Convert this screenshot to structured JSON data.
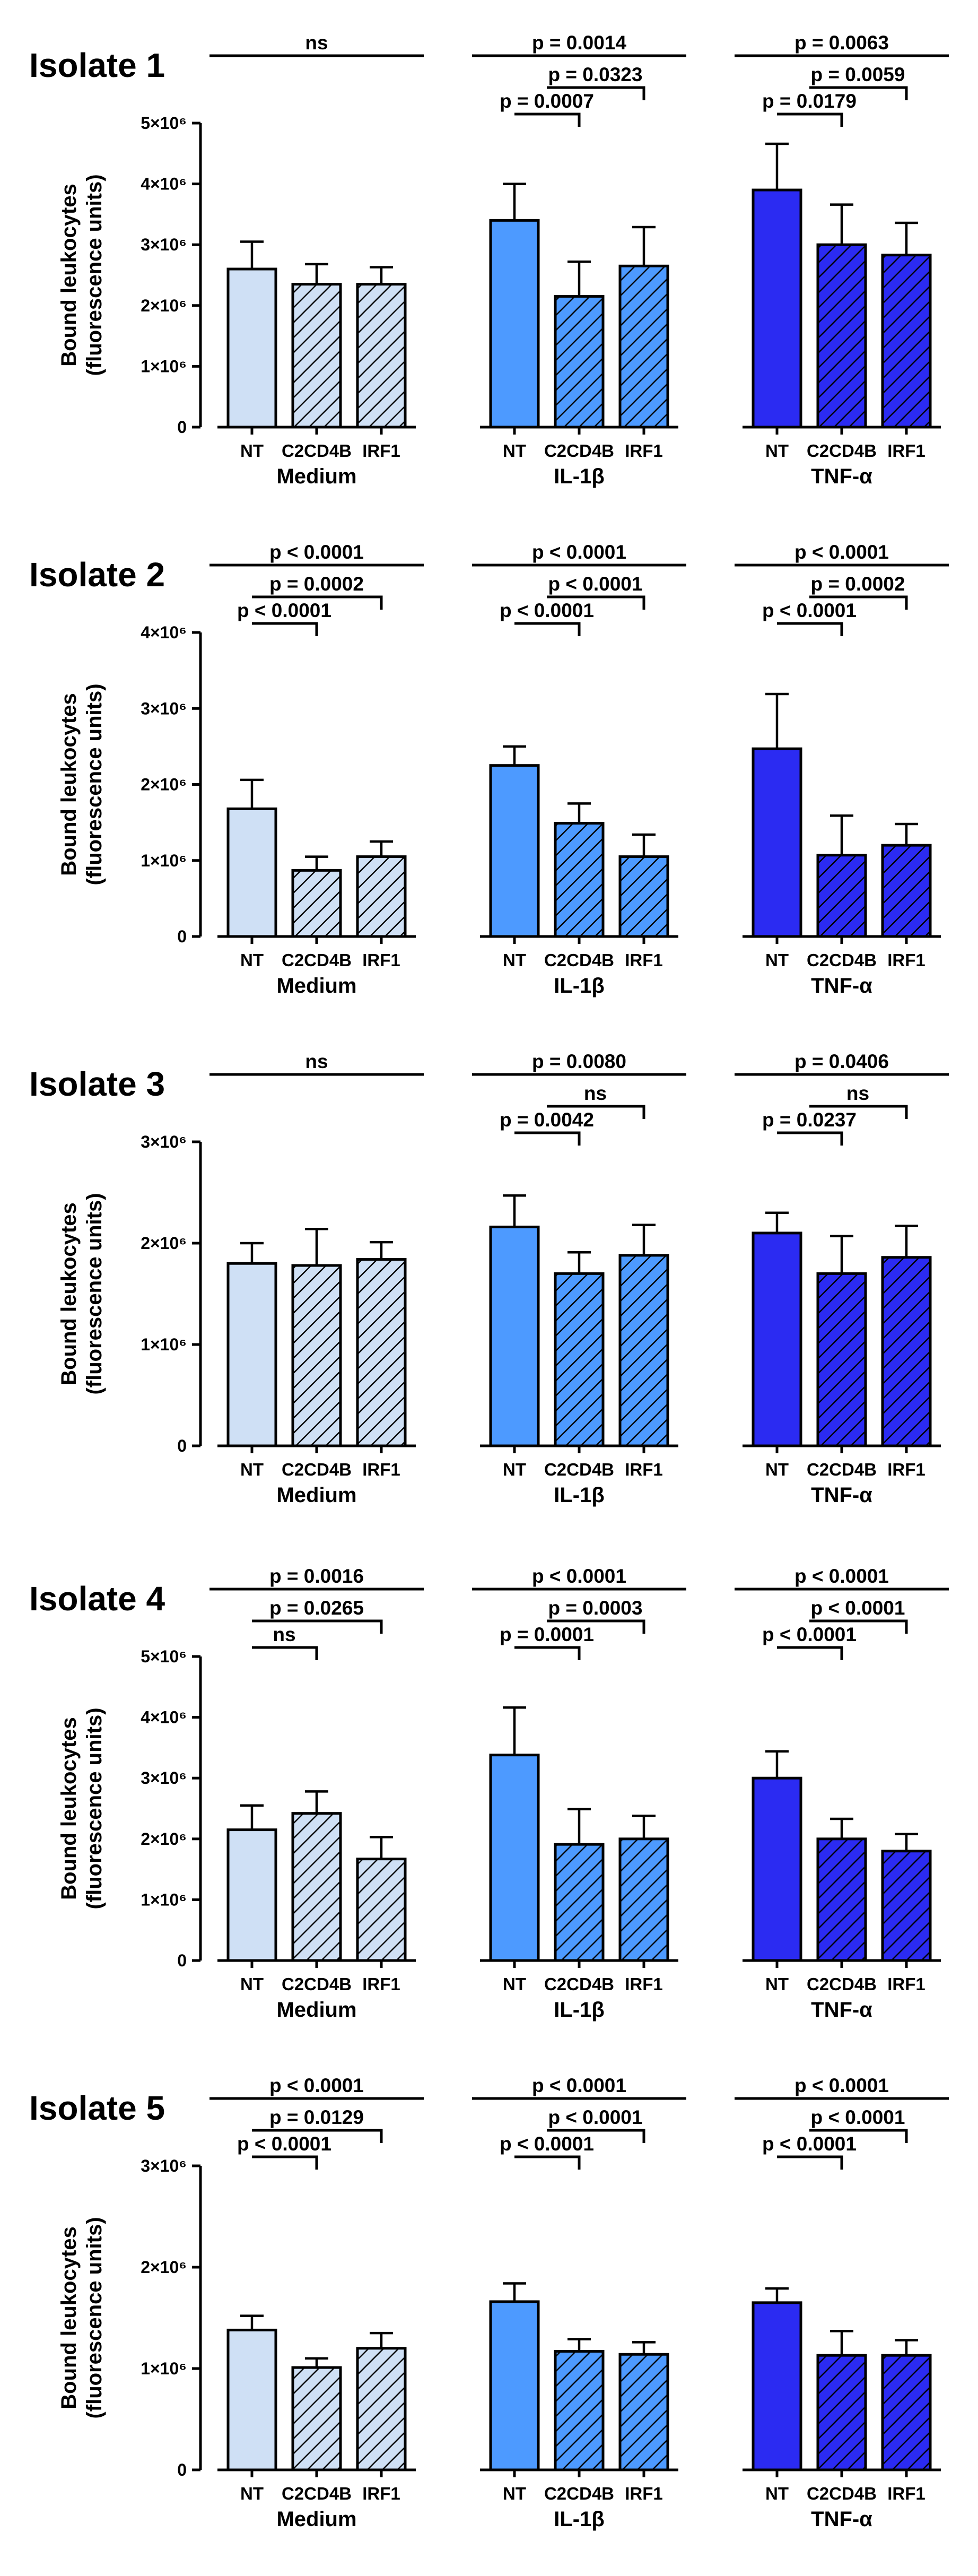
{
  "chart_data": {
    "type": "bar",
    "ylabel_lines": [
      "Bound leukocytes",
      "(fluorescence units)"
    ],
    "categories": [
      "NT",
      "C2CD4B",
      "IRF1"
    ],
    "groups": [
      "Medium",
      "IL-1β",
      "TNF-α"
    ],
    "colors": {
      "Medium": "#cfe0f5",
      "IL-1β": "#4d9aff",
      "TNF-α": "#2b2bf2"
    },
    "panels": [
      {
        "title": "Isolate 1",
        "ylim": [
          0,
          5000000
        ],
        "ticks": [
          {
            "value": 0,
            "label": "0"
          },
          {
            "value": 1000000,
            "label": "1×10⁶"
          },
          {
            "value": 2000000,
            "label": "2×10⁶"
          },
          {
            "value": 3000000,
            "label": "3×10⁶"
          },
          {
            "value": 4000000,
            "label": "4×10⁶"
          },
          {
            "value": 5000000,
            "label": "5×10⁶"
          }
        ],
        "series": [
          {
            "group": "Medium",
            "values": [
              2600000,
              2350000,
              2350000
            ],
            "errors": [
              450000,
              330000,
              280000
            ]
          },
          {
            "group": "IL-1β",
            "values": [
              3400000,
              2150000,
              2650000
            ],
            "errors": [
              600000,
              570000,
              640000
            ]
          },
          {
            "group": "TNF-α",
            "values": [
              3900000,
              3000000,
              2830000
            ],
            "errors": [
              760000,
              660000,
              530000
            ]
          }
        ],
        "comparisons": [
          {
            "group": "Medium",
            "from": 0,
            "to": 2,
            "level": 3,
            "label": "ns"
          },
          {
            "group": "IL-1β",
            "from": 0,
            "to": 2,
            "level": 3,
            "label": "p = 0.0014"
          },
          {
            "group": "IL-1β",
            "from": 0.5,
            "to": 2,
            "level": 2,
            "label": "p = 0.0323"
          },
          {
            "group": "IL-1β",
            "from": 0,
            "to": 1,
            "level": 1,
            "label": "p = 0.0007"
          },
          {
            "group": "TNF-α",
            "from": 0,
            "to": 2,
            "level": 3,
            "label": "p = 0.0063"
          },
          {
            "group": "TNF-α",
            "from": 0.5,
            "to": 2,
            "level": 2,
            "label": "p = 0.0059"
          },
          {
            "group": "TNF-α",
            "from": 0,
            "to": 1,
            "level": 1,
            "label": "p = 0.0179"
          }
        ]
      },
      {
        "title": "Isolate 2",
        "ylim": [
          0,
          4000000
        ],
        "ticks": [
          {
            "value": 0,
            "label": "0"
          },
          {
            "value": 1000000,
            "label": "1×10⁶"
          },
          {
            "value": 2000000,
            "label": "2×10⁶"
          },
          {
            "value": 3000000,
            "label": "3×10⁶"
          },
          {
            "value": 4000000,
            "label": "4×10⁶"
          }
        ],
        "series": [
          {
            "group": "Medium",
            "values": [
              1680000,
              870000,
              1050000
            ],
            "errors": [
              380000,
              180000,
              200000
            ]
          },
          {
            "group": "IL-1β",
            "values": [
              2250000,
              1490000,
              1050000
            ],
            "errors": [
              250000,
              260000,
              290000
            ]
          },
          {
            "group": "TNF-α",
            "values": [
              2470000,
              1070000,
              1200000
            ],
            "errors": [
              720000,
              520000,
              280000
            ]
          }
        ],
        "comparisons": [
          {
            "group": "Medium",
            "from": 0,
            "to": 2,
            "level": 3,
            "label": "p < 0.0001"
          },
          {
            "group": "Medium",
            "from": 0,
            "to": 2,
            "level": 2,
            "label": "p = 0.0002"
          },
          {
            "group": "Medium",
            "from": 0,
            "to": 1,
            "level": 1,
            "label": "p < 0.0001"
          },
          {
            "group": "IL-1β",
            "from": 0,
            "to": 2,
            "level": 3,
            "label": "p < 0.0001"
          },
          {
            "group": "IL-1β",
            "from": 0.5,
            "to": 2,
            "level": 2,
            "label": "p < 0.0001"
          },
          {
            "group": "IL-1β",
            "from": 0,
            "to": 1,
            "level": 1,
            "label": "p < 0.0001"
          },
          {
            "group": "TNF-α",
            "from": 0,
            "to": 2,
            "level": 3,
            "label": "p < 0.0001"
          },
          {
            "group": "TNF-α",
            "from": 0.5,
            "to": 2,
            "level": 2,
            "label": "p = 0.0002"
          },
          {
            "group": "TNF-α",
            "from": 0,
            "to": 1,
            "level": 1,
            "label": "p < 0.0001"
          }
        ]
      },
      {
        "title": "Isolate 3",
        "ylim": [
          0,
          3000000
        ],
        "ticks": [
          {
            "value": 0,
            "label": "0"
          },
          {
            "value": 1000000,
            "label": "1×10⁶"
          },
          {
            "value": 2000000,
            "label": "2×10⁶"
          },
          {
            "value": 3000000,
            "label": "3×10⁶"
          }
        ],
        "series": [
          {
            "group": "Medium",
            "values": [
              1800000,
              1780000,
              1840000
            ],
            "errors": [
              200000,
              360000,
              170000
            ]
          },
          {
            "group": "IL-1β",
            "values": [
              2160000,
              1700000,
              1880000
            ],
            "errors": [
              310000,
              210000,
              300000
            ]
          },
          {
            "group": "TNF-α",
            "values": [
              2100000,
              1700000,
              1860000
            ],
            "errors": [
              200000,
              370000,
              310000
            ]
          }
        ],
        "comparisons": [
          {
            "group": "Medium",
            "from": 0,
            "to": 2,
            "level": 3,
            "label": "ns"
          },
          {
            "group": "IL-1β",
            "from": 0,
            "to": 2,
            "level": 3,
            "label": "p = 0.0080"
          },
          {
            "group": "IL-1β",
            "from": 0.5,
            "to": 2,
            "level": 2,
            "label": "ns"
          },
          {
            "group": "IL-1β",
            "from": 0,
            "to": 1,
            "level": 1,
            "label": "p = 0.0042"
          },
          {
            "group": "TNF-α",
            "from": 0,
            "to": 2,
            "level": 3,
            "label": "p = 0.0406"
          },
          {
            "group": "TNF-α",
            "from": 0.5,
            "to": 2,
            "level": 2,
            "label": "ns"
          },
          {
            "group": "TNF-α",
            "from": 0,
            "to": 1,
            "level": 1,
            "label": "p = 0.0237"
          }
        ]
      },
      {
        "title": "Isolate 4",
        "ylim": [
          0,
          5000000
        ],
        "ticks": [
          {
            "value": 0,
            "label": "0"
          },
          {
            "value": 1000000,
            "label": "1×10⁶"
          },
          {
            "value": 2000000,
            "label": "2×10⁶"
          },
          {
            "value": 3000000,
            "label": "3×10⁶"
          },
          {
            "value": 4000000,
            "label": "4×10⁶"
          },
          {
            "value": 5000000,
            "label": "5×10⁶"
          }
        ],
        "series": [
          {
            "group": "Medium",
            "values": [
              2150000,
              2420000,
              1670000
            ],
            "errors": [
              400000,
              360000,
              360000
            ]
          },
          {
            "group": "IL-1β",
            "values": [
              3380000,
              1910000,
              2000000
            ],
            "errors": [
              780000,
              580000,
              380000
            ]
          },
          {
            "group": "TNF-α",
            "values": [
              3000000,
              2000000,
              1800000
            ],
            "errors": [
              440000,
              330000,
              280000
            ]
          }
        ],
        "comparisons": [
          {
            "group": "Medium",
            "from": 0,
            "to": 2,
            "level": 3,
            "label": "p = 0.0016"
          },
          {
            "group": "Medium",
            "from": 0,
            "to": 2,
            "level": 2,
            "label": "p = 0.0265"
          },
          {
            "group": "Medium",
            "from": 0,
            "to": 1,
            "level": 1,
            "label": "ns"
          },
          {
            "group": "IL-1β",
            "from": 0,
            "to": 2,
            "level": 3,
            "label": "p < 0.0001"
          },
          {
            "group": "IL-1β",
            "from": 0.5,
            "to": 2,
            "level": 2,
            "label": "p = 0.0003"
          },
          {
            "group": "IL-1β",
            "from": 0,
            "to": 1,
            "level": 1,
            "label": "p = 0.0001"
          },
          {
            "group": "TNF-α",
            "from": 0,
            "to": 2,
            "level": 3,
            "label": "p < 0.0001"
          },
          {
            "group": "TNF-α",
            "from": 0.5,
            "to": 2,
            "level": 2,
            "label": "p < 0.0001"
          },
          {
            "group": "TNF-α",
            "from": 0,
            "to": 1,
            "level": 1,
            "label": "p < 0.0001"
          }
        ]
      },
      {
        "title": "Isolate 5",
        "ylim": [
          0,
          3000000
        ],
        "ticks": [
          {
            "value": 0,
            "label": "0"
          },
          {
            "value": 1000000,
            "label": "1×10⁶"
          },
          {
            "value": 2000000,
            "label": "2×10⁶"
          },
          {
            "value": 3000000,
            "label": "3×10⁶"
          }
        ],
        "series": [
          {
            "group": "Medium",
            "values": [
              1380000,
              1010000,
              1200000
            ],
            "errors": [
              140000,
              90000,
              150000
            ]
          },
          {
            "group": "IL-1β",
            "values": [
              1660000,
              1170000,
              1140000
            ],
            "errors": [
              180000,
              120000,
              120000
            ]
          },
          {
            "group": "TNF-α",
            "values": [
              1650000,
              1130000,
              1130000
            ],
            "errors": [
              140000,
              240000,
              150000
            ]
          }
        ],
        "comparisons": [
          {
            "group": "Medium",
            "from": 0,
            "to": 2,
            "level": 3,
            "label": "p < 0.0001"
          },
          {
            "group": "Medium",
            "from": 0,
            "to": 2,
            "level": 2,
            "label": "p = 0.0129"
          },
          {
            "group": "Medium",
            "from": 0,
            "to": 1,
            "level": 1,
            "label": "p < 0.0001"
          },
          {
            "group": "IL-1β",
            "from": 0,
            "to": 2,
            "level": 3,
            "label": "p < 0.0001"
          },
          {
            "group": "IL-1β",
            "from": 0.5,
            "to": 2,
            "level": 2,
            "label": "p < 0.0001"
          },
          {
            "group": "IL-1β",
            "from": 0,
            "to": 1,
            "level": 1,
            "label": "p < 0.0001"
          },
          {
            "group": "TNF-α",
            "from": 0,
            "to": 2,
            "level": 3,
            "label": "p < 0.0001"
          },
          {
            "group": "TNF-α",
            "from": 0.5,
            "to": 2,
            "level": 2,
            "label": "p < 0.0001"
          },
          {
            "group": "TNF-α",
            "from": 0,
            "to": 1,
            "level": 1,
            "label": "p < 0.0001"
          }
        ]
      }
    ]
  }
}
